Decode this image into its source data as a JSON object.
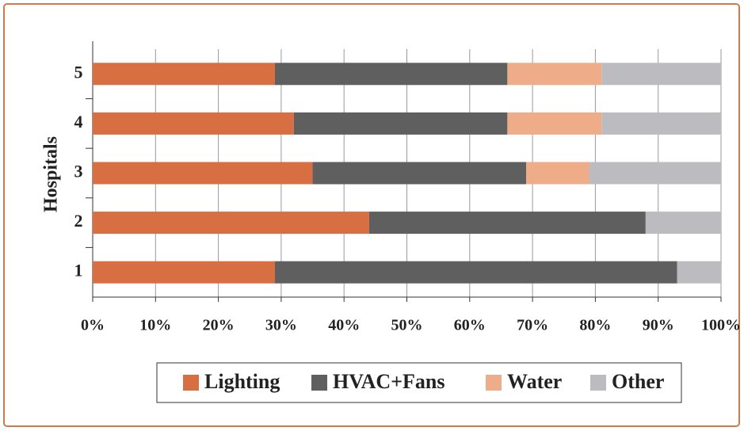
{
  "chart_data": {
    "type": "stacked_barh",
    "y_label": "Hospitals",
    "categories": [
      "1",
      "2",
      "3",
      "4",
      "5"
    ],
    "series": [
      {
        "name": "Lighting",
        "color": "#d86f42",
        "values": [
          29,
          44,
          35,
          32,
          29
        ]
      },
      {
        "name": "HVAC+Fans",
        "color": "#5f5f5f",
        "values": [
          64,
          44,
          34,
          34,
          37
        ]
      },
      {
        "name": "Water",
        "color": "#eeac88",
        "values": [
          0,
          0,
          10,
          15,
          15
        ]
      },
      {
        "name": "Other",
        "color": "#bcbcc0",
        "values": [
          7,
          12,
          21,
          19,
          19
        ]
      }
    ],
    "xlim": [
      0,
      100
    ],
    "xticks": [
      {
        "value": 0,
        "label": "0%"
      },
      {
        "value": 10,
        "label": "10%"
      },
      {
        "value": 20,
        "label": "20%"
      },
      {
        "value": 30,
        "label": "30%"
      },
      {
        "value": 40,
        "label": "40%"
      },
      {
        "value": 50,
        "label": "50%"
      },
      {
        "value": 60,
        "label": "60%"
      },
      {
        "value": 70,
        "label": "70%"
      },
      {
        "value": 80,
        "label": "80%"
      },
      {
        "value": 90,
        "label": "90%"
      },
      {
        "value": 100,
        "label": "100%"
      }
    ],
    "grid": true,
    "legend": "bottom"
  }
}
